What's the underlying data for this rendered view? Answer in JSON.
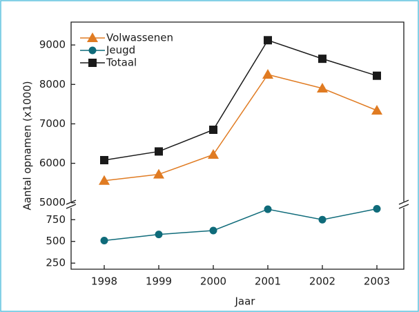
{
  "chart_data": {
    "type": "line",
    "x_label": "Jaar",
    "y_label": "Aantal opnamen (x1000)",
    "categories": [
      "1998",
      "1999",
      "2000",
      "2001",
      "2002",
      "2003"
    ],
    "series": [
      {
        "name": "Volwassenen",
        "color": "#e07b22",
        "marker": "triangle",
        "values": [
          5560,
          5720,
          6220,
          8250,
          7900,
          7340
        ]
      },
      {
        "name": "Jeugd",
        "color": "#0f6b7a",
        "marker": "circle",
        "segment": "low",
        "values": [
          510,
          580,
          625,
          870,
          750,
          875
        ]
      },
      {
        "name": "Totaal",
        "color": "#1a1a1a",
        "marker": "square",
        "values": [
          6080,
          6300,
          6850,
          9120,
          8650,
          8220
        ]
      }
    ],
    "ylim": [
      4960,
      9580
    ],
    "yticks": [
      5000,
      6000,
      7000,
      8000,
      9000
    ],
    "ylim_low": [
      180,
      895
    ],
    "yticks_low": [
      250,
      500,
      750
    ],
    "legend": "upper left"
  }
}
